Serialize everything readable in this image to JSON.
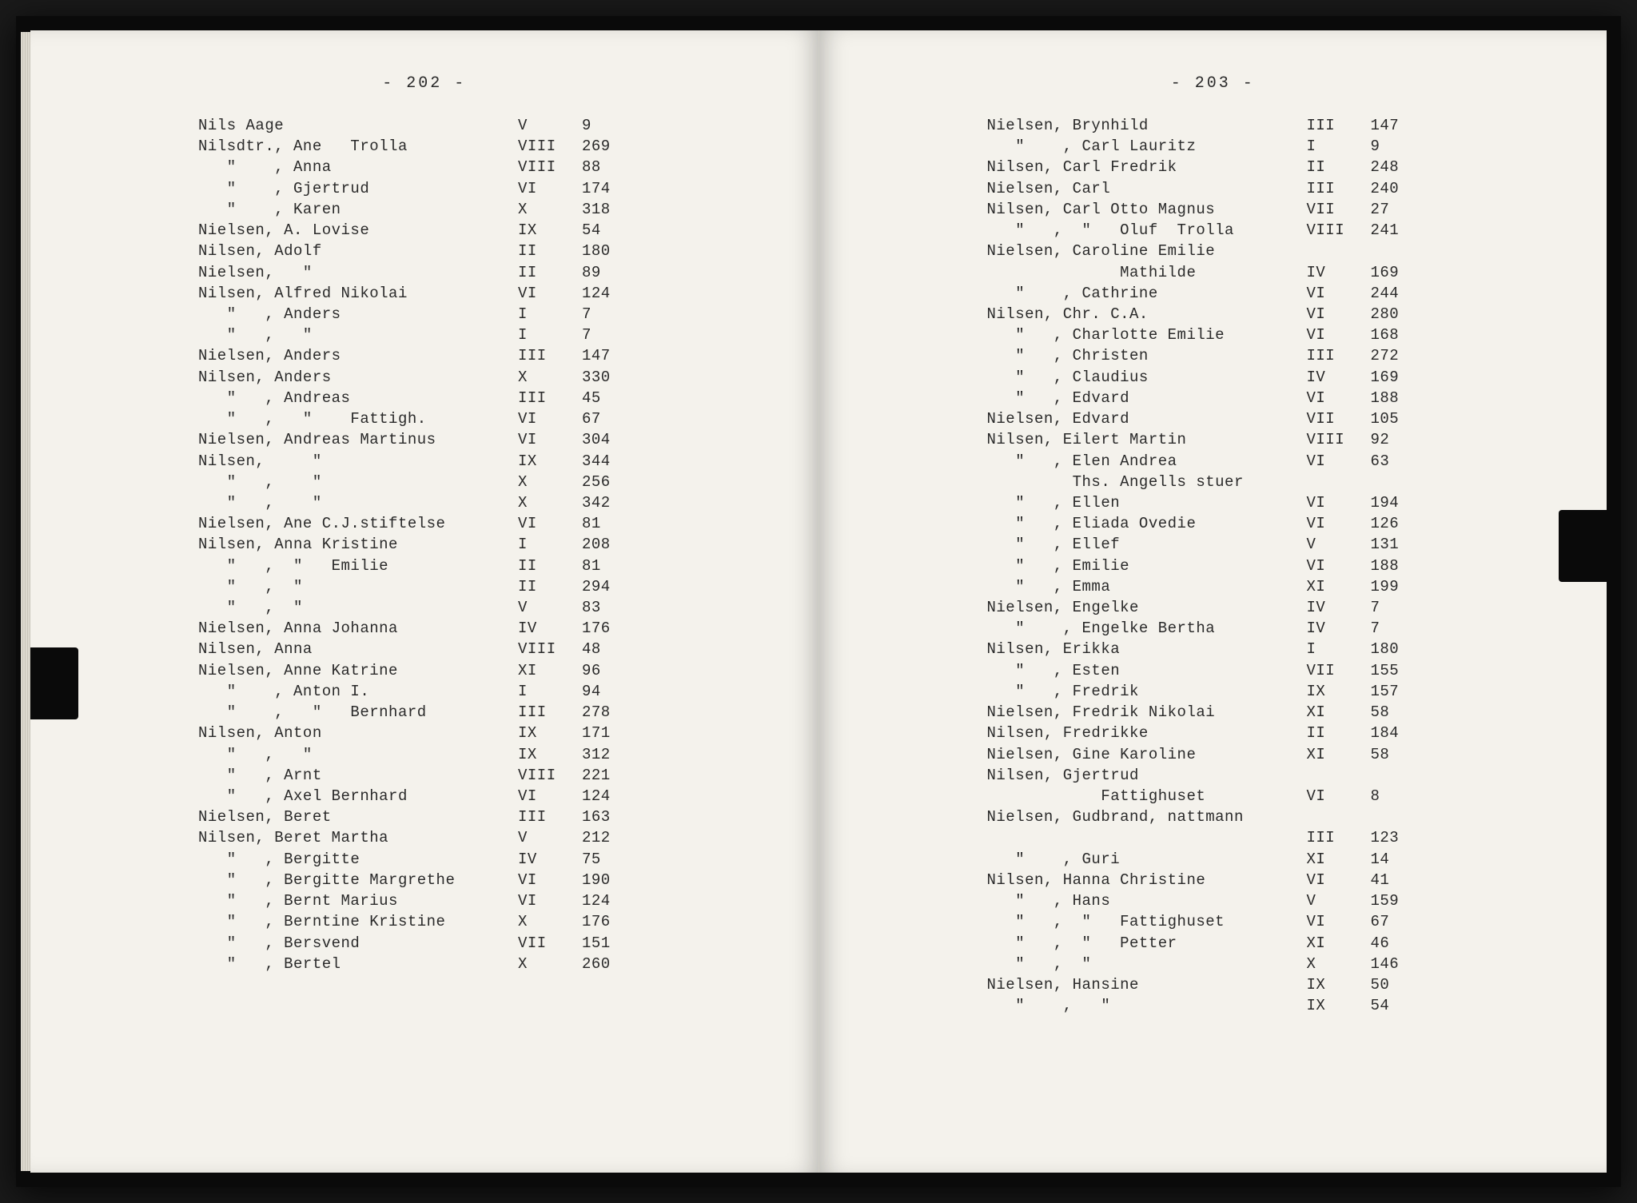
{
  "book": {
    "background_color": "#1a1a1a",
    "page_color": "#f4f2ec",
    "text_color": "#2a2a2a",
    "font_family": "Courier New",
    "font_size_pt": 14
  },
  "left_page": {
    "page_number": "- 202 -",
    "entries": [
      {
        "name": "Nils Aage",
        "vol": "V",
        "pg": "9"
      },
      {
        "name": "Nilsdtr., Ane   Trolla",
        "vol": "VIII",
        "pg": "269"
      },
      {
        "name": "   \"    , Anna",
        "vol": "VIII",
        "pg": "88"
      },
      {
        "name": "   \"    , Gjertrud",
        "vol": "VI",
        "pg": "174"
      },
      {
        "name": "   \"    , Karen",
        "vol": "X",
        "pg": "318"
      },
      {
        "name": "Nielsen, A. Lovise",
        "vol": "IX",
        "pg": "54"
      },
      {
        "name": "Nilsen, Adolf",
        "vol": "II",
        "pg": "180"
      },
      {
        "name": "Nielsen,   \"",
        "vol": "II",
        "pg": "89"
      },
      {
        "name": "Nilsen, Alfred Nikolai",
        "vol": "VI",
        "pg": "124"
      },
      {
        "name": "   \"   , Anders",
        "vol": "I",
        "pg": "7"
      },
      {
        "name": "   \"   ,   \"",
        "vol": "I",
        "pg": "7"
      },
      {
        "name": "Nielsen, Anders",
        "vol": "III",
        "pg": "147"
      },
      {
        "name": "Nilsen, Anders",
        "vol": "X",
        "pg": "330"
      },
      {
        "name": "   \"   , Andreas",
        "vol": "III",
        "pg": "45"
      },
      {
        "name": "   \"   ,   \"    Fattigh.",
        "vol": "VI",
        "pg": "67"
      },
      {
        "name": "Nielsen, Andreas Martinus",
        "vol": "VI",
        "pg": "304"
      },
      {
        "name": "Nilsen,     \"",
        "vol": "IX",
        "pg": "344"
      },
      {
        "name": "   \"   ,    \"",
        "vol": "X",
        "pg": "256"
      },
      {
        "name": "   \"   ,    \"",
        "vol": "X",
        "pg": "342"
      },
      {
        "name": "Nielsen, Ane C.J.stiftelse",
        "vol": "VI",
        "pg": "81"
      },
      {
        "name": "Nilsen, Anna Kristine",
        "vol": "I",
        "pg": "208"
      },
      {
        "name": "   \"   ,  \"   Emilie",
        "vol": "II",
        "pg": "81"
      },
      {
        "name": "   \"   ,  \"",
        "vol": "II",
        "pg": "294"
      },
      {
        "name": "   \"   ,  \"",
        "vol": "V",
        "pg": "83"
      },
      {
        "name": "Nielsen, Anna Johanna",
        "vol": "IV",
        "pg": "176"
      },
      {
        "name": "Nilsen, Anna",
        "vol": "VIII",
        "pg": "48"
      },
      {
        "name": "Nielsen, Anne Katrine",
        "vol": "XI",
        "pg": "96"
      },
      {
        "name": "   \"    , Anton I.",
        "vol": "I",
        "pg": "94"
      },
      {
        "name": "   \"    ,   \"   Bernhard",
        "vol": "III",
        "pg": "278"
      },
      {
        "name": "Nilsen, Anton",
        "vol": "IX",
        "pg": "171"
      },
      {
        "name": "   \"   ,   \"",
        "vol": "IX",
        "pg": "312"
      },
      {
        "name": "   \"   , Arnt",
        "vol": "VIII",
        "pg": "221"
      },
      {
        "name": "   \"   , Axel Bernhard",
        "vol": "VI",
        "pg": "124"
      },
      {
        "name": "Nielsen, Beret",
        "vol": "III",
        "pg": "163"
      },
      {
        "name": "Nilsen, Beret Martha",
        "vol": "V",
        "pg": "212"
      },
      {
        "name": "   \"   , Bergitte",
        "vol": "IV",
        "pg": "75"
      },
      {
        "name": "   \"   , Bergitte Margrethe",
        "vol": "VI",
        "pg": "190"
      },
      {
        "name": "   \"   , Bernt Marius",
        "vol": "VI",
        "pg": "124"
      },
      {
        "name": "   \"   , Berntine Kristine",
        "vol": "X",
        "pg": "176"
      },
      {
        "name": "   \"   , Bersvend",
        "vol": "VII",
        "pg": "151"
      },
      {
        "name": "   \"   , Bertel",
        "vol": "X",
        "pg": "260"
      }
    ]
  },
  "right_page": {
    "page_number": "- 203 -",
    "entries": [
      {
        "name": "Nielsen, Brynhild",
        "vol": "III",
        "pg": "147"
      },
      {
        "name": "   \"    , Carl Lauritz",
        "vol": "I",
        "pg": "9"
      },
      {
        "name": "Nilsen, Carl Fredrik",
        "vol": "II",
        "pg": "248"
      },
      {
        "name": "Nielsen, Carl",
        "vol": "III",
        "pg": "240"
      },
      {
        "name": "Nilsen, Carl Otto Magnus",
        "vol": "VII",
        "pg": "27"
      },
      {
        "name": "   \"   ,  \"   Oluf  Trolla",
        "vol": "VIII",
        "pg": "241"
      },
      {
        "name": "Nielsen, Caroline Emilie",
        "vol": "",
        "pg": ""
      },
      {
        "name": "              Mathilde",
        "vol": "IV",
        "pg": "169"
      },
      {
        "name": "   \"    , Cathrine",
        "vol": "VI",
        "pg": "244"
      },
      {
        "name": "Nilsen, Chr. C.A.",
        "vol": "VI",
        "pg": "280"
      },
      {
        "name": "   \"   , Charlotte Emilie",
        "vol": "VI",
        "pg": "168"
      },
      {
        "name": "   \"   , Christen",
        "vol": "III",
        "pg": "272"
      },
      {
        "name": "   \"   , Claudius",
        "vol": "IV",
        "pg": "169"
      },
      {
        "name": "   \"   , Edvard",
        "vol": "VI",
        "pg": "188"
      },
      {
        "name": "Nielsen, Edvard",
        "vol": "VII",
        "pg": "105"
      },
      {
        "name": "Nilsen, Eilert Martin",
        "vol": "VIII",
        "pg": "92"
      },
      {
        "name": "   \"   , Elen Andrea",
        "vol": "VI",
        "pg": "63"
      },
      {
        "name": "         Ths. Angells stuer",
        "vol": "",
        "pg": ""
      },
      {
        "name": "   \"   , Ellen",
        "vol": "VI",
        "pg": "194"
      },
      {
        "name": "   \"   , Eliada Ovedie",
        "vol": "VI",
        "pg": "126"
      },
      {
        "name": "   \"   , Ellef",
        "vol": "V",
        "pg": "131"
      },
      {
        "name": "   \"   , Emilie",
        "vol": "VI",
        "pg": "188"
      },
      {
        "name": "   \"   , Emma",
        "vol": "XI",
        "pg": "199"
      },
      {
        "name": "Nielsen, Engelke",
        "vol": "IV",
        "pg": "7"
      },
      {
        "name": "   \"    , Engelke Bertha",
        "vol": "IV",
        "pg": "7"
      },
      {
        "name": "Nilsen, Erikka",
        "vol": "I",
        "pg": "180"
      },
      {
        "name": "   \"   , Esten",
        "vol": "VII",
        "pg": "155"
      },
      {
        "name": "   \"   , Fredrik",
        "vol": "IX",
        "pg": "157"
      },
      {
        "name": "Nielsen, Fredrik Nikolai",
        "vol": "XI",
        "pg": "58"
      },
      {
        "name": "Nilsen, Fredrikke",
        "vol": "II",
        "pg": "184"
      },
      {
        "name": "Nielsen, Gine Karoline",
        "vol": "XI",
        "pg": "58"
      },
      {
        "name": "Nilsen, Gjertrud",
        "vol": "",
        "pg": ""
      },
      {
        "name": "            Fattighuset",
        "vol": "VI",
        "pg": "8"
      },
      {
        "name": "Nielsen, Gudbrand, nattmann",
        "vol": "",
        "pg": ""
      },
      {
        "name": "",
        "vol": "III",
        "pg": "123"
      },
      {
        "name": "   \"    , Guri",
        "vol": "XI",
        "pg": "14"
      },
      {
        "name": "Nilsen, Hanna Christine",
        "vol": "VI",
        "pg": "41"
      },
      {
        "name": "   \"   , Hans",
        "vol": "V",
        "pg": "159"
      },
      {
        "name": "   \"   ,  \"   Fattighuset",
        "vol": "VI",
        "pg": "67"
      },
      {
        "name": "   \"   ,  \"   Petter",
        "vol": "XI",
        "pg": "46"
      },
      {
        "name": "   \"   ,  \"",
        "vol": "X",
        "pg": "146"
      },
      {
        "name": "Nielsen, Hansine",
        "vol": "IX",
        "pg": "50"
      },
      {
        "name": "   \"    ,   \"",
        "vol": "IX",
        "pg": "54"
      }
    ]
  }
}
